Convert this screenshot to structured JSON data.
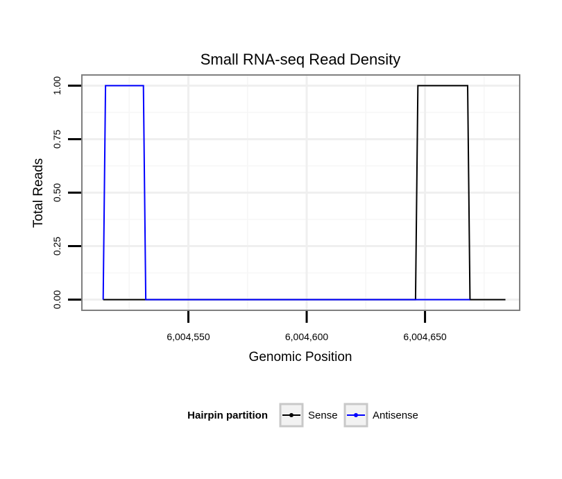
{
  "chart_data": {
    "type": "line",
    "title": "Small RNA-seq Read Density",
    "xlabel": "Genomic Position",
    "ylabel": "Total Reads",
    "xlim": [
      6004505,
      6004690
    ],
    "ylim": [
      -0.05,
      1.05
    ],
    "x_ticks": [
      6004550,
      6004600,
      6004650
    ],
    "x_tick_labels": [
      "6,004,550",
      "6,004,600",
      "6,004,650"
    ],
    "y_ticks": [
      0,
      0.25,
      0.5,
      0.75,
      1.0
    ],
    "y_tick_labels": [
      "0.00",
      "0.25",
      "0.50",
      "0.75",
      "1.00"
    ],
    "grid": true,
    "legend": {
      "title": "Hairpin partition",
      "position": "bottom"
    },
    "series": [
      {
        "name": "Sense",
        "color": "#000000",
        "x": [
          6004514,
          6004646,
          6004647,
          6004668,
          6004669,
          6004684
        ],
        "y": [
          0,
          0,
          1,
          1,
          0,
          0
        ]
      },
      {
        "name": "Antisense",
        "color": "#0000ff",
        "x": [
          6004514,
          6004515,
          6004531,
          6004532,
          6004646,
          6004669
        ],
        "y": [
          0,
          1,
          1,
          0,
          0,
          0
        ]
      }
    ]
  }
}
